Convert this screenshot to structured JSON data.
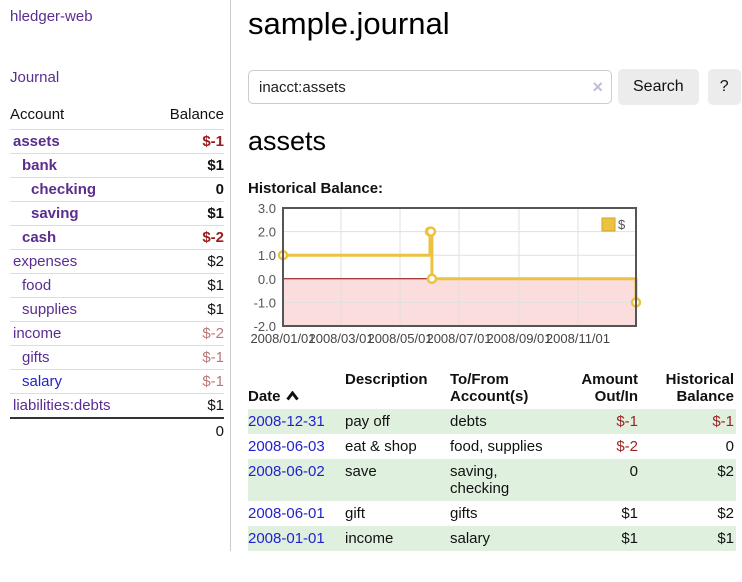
{
  "sidebar": {
    "app_title": "hledger-web",
    "nav": {
      "journal_label": "Journal"
    },
    "accounts_table": {
      "col_account": "Account",
      "col_balance": "Balance",
      "rows": [
        {
          "name": "assets",
          "depth": 1,
          "emphasis": true,
          "balance": "$-1",
          "negative": "strong",
          "link_color": "purple"
        },
        {
          "name": "bank",
          "depth": 2,
          "emphasis": true,
          "balance": "$1",
          "negative": null,
          "link_color": "purple"
        },
        {
          "name": "checking",
          "depth": 3,
          "emphasis": true,
          "balance": "0",
          "negative": null,
          "link_color": "purple"
        },
        {
          "name": "saving",
          "depth": 3,
          "emphasis": true,
          "balance": "$1",
          "negative": null,
          "link_color": "purple"
        },
        {
          "name": "cash",
          "depth": 2,
          "emphasis": true,
          "balance": "$-2",
          "negative": "strong",
          "link_color": "purple"
        },
        {
          "name": "expenses",
          "depth": 1,
          "emphasis": false,
          "balance": "$2",
          "negative": null,
          "link_color": "purple"
        },
        {
          "name": "food",
          "depth": 2,
          "emphasis": false,
          "balance": "$1",
          "negative": null,
          "link_color": "purple"
        },
        {
          "name": "supplies",
          "depth": 2,
          "emphasis": false,
          "balance": "$1",
          "negative": null,
          "link_color": "purple"
        },
        {
          "name": "income",
          "depth": 1,
          "emphasis": false,
          "balance": "$-2",
          "negative": "muted",
          "link_color": "purple"
        },
        {
          "name": "gifts",
          "depth": 2,
          "emphasis": false,
          "balance": "$-1",
          "negative": "muted",
          "link_color": "purple"
        },
        {
          "name": "salary",
          "depth": 2,
          "emphasis": false,
          "balance": "$-1",
          "negative": "muted",
          "link_color": "blue"
        },
        {
          "name": "liabilities:debts",
          "depth": 1,
          "emphasis": false,
          "balance": "$1",
          "negative": null,
          "link_color": "purple"
        }
      ],
      "total": "0"
    }
  },
  "main": {
    "title": "sample.journal",
    "search": {
      "value": "inacct:assets",
      "clear_icon": "×",
      "search_label": "Search",
      "help_label": "?"
    },
    "account_heading": "assets",
    "chart_label": "Historical Balance:",
    "register": {
      "headers": {
        "date": "Date",
        "description": "Description",
        "accounts": "To/From\nAccount(s)",
        "amount": "Amount\nOut/In",
        "balance": "Historical\nBalance"
      },
      "rows": [
        {
          "date": "2008-12-31",
          "description": "pay off",
          "accounts": "debts",
          "amount": "$-1",
          "balance": "$-1"
        },
        {
          "date": "2008-06-03",
          "description": "eat & shop",
          "accounts": "food, supplies",
          "amount": "$-2",
          "balance": "0"
        },
        {
          "date": "2008-06-02",
          "description": "save",
          "accounts": "saving,\nchecking",
          "amount": "0",
          "balance": "$2"
        },
        {
          "date": "2008-06-01",
          "description": "gift",
          "accounts": "gifts",
          "amount": "$1",
          "balance": "$2"
        },
        {
          "date": "2008-01-01",
          "description": "income",
          "accounts": "salary",
          "amount": "$1",
          "balance": "$1"
        }
      ]
    }
  },
  "chart_data": {
    "type": "line",
    "step": true,
    "title": "Historical Balance:",
    "xlabel": "",
    "ylabel": "",
    "ylim": [
      -2,
      3
    ],
    "xlim_days": [
      0,
      365
    ],
    "y_ticks": [
      3.0,
      2.0,
      1.0,
      0.0,
      -1.0,
      -2.0
    ],
    "x_ticks": [
      {
        "label": "2008/01/01",
        "day": 0
      },
      {
        "label": "2008/03/01",
        "day": 60
      },
      {
        "label": "2008/05/01",
        "day": 121
      },
      {
        "label": "2008/07/01",
        "day": 182
      },
      {
        "label": "2008/09/01",
        "day": 244
      },
      {
        "label": "2008/11/01",
        "day": 305
      }
    ],
    "legend_position": "top-right",
    "grid": true,
    "series": [
      {
        "name": "$",
        "color": "#edc240",
        "points": [
          {
            "date": "2008/01/01",
            "day": 0,
            "value": 1
          },
          {
            "date": "2008/06/01",
            "day": 152,
            "value": 2
          },
          {
            "date": "2008/06/02",
            "day": 153,
            "value": 2
          },
          {
            "date": "2008/06/03",
            "day": 154,
            "value": 0
          },
          {
            "date": "2008/12/31",
            "day": 365,
            "value": -1
          }
        ]
      }
    ],
    "colors": {
      "negative_fill": "#fbdddd",
      "zero_line": "#8b0000",
      "plot_border": "#555555",
      "gridline": "#e0e0e0",
      "tick_text": "#545454"
    }
  }
}
